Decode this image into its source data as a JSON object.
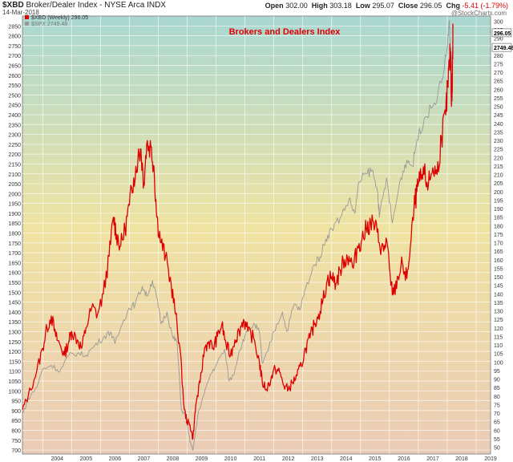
{
  "header": {
    "symbol": "$XBD",
    "description": "Broker/Dealer Index - NYSE Arca INDX",
    "date": "14-Mar-2018",
    "open_label": "Open",
    "open": "302.00",
    "high_label": "High",
    "high": "303.18",
    "low_label": "Low",
    "low": "295.07",
    "close_label": "Close",
    "close": "296.05",
    "chg_label": "Chg",
    "chg": "-5.41 (-1.79%)",
    "watermark": "@StockCharts.com"
  },
  "chart_data": {
    "type": "line",
    "title": "Brokers and Dealers Index",
    "x_tick_labels": [
      "2004",
      "2005",
      "2006",
      "2007",
      "2008",
      "2009",
      "2010",
      "2011",
      "2012",
      "2013",
      "2014",
      "2015",
      "2016",
      "2017",
      "2018",
      "2019"
    ],
    "x_range": [
      2003.3,
      2019.5
    ],
    "left_axis": {
      "range": [
        680,
        2900
      ],
      "ticks": [
        700,
        750,
        800,
        850,
        900,
        950,
        1000,
        1050,
        1100,
        1150,
        1200,
        1250,
        1300,
        1350,
        1400,
        1450,
        1500,
        1550,
        1600,
        1650,
        1700,
        1750,
        1800,
        1850,
        1900,
        1950,
        2000,
        2050,
        2100,
        2150,
        2200,
        2250,
        2300,
        2350,
        2400,
        2450,
        2500,
        2550,
        2600,
        2650,
        2700,
        2750,
        2800,
        2850
      ]
    },
    "right_axis": {
      "range": [
        46,
        303
      ],
      "ticks": [
        50,
        55,
        60,
        65,
        70,
        75,
        80,
        85,
        90,
        95,
        100,
        105,
        110,
        115,
        120,
        125,
        130,
        135,
        140,
        145,
        150,
        155,
        160,
        165,
        170,
        175,
        180,
        185,
        190,
        195,
        200,
        205,
        210,
        215,
        220,
        225,
        230,
        235,
        240,
        245,
        250,
        255,
        260,
        265,
        270,
        275,
        280,
        285,
        290,
        295,
        300
      ]
    },
    "series": [
      {
        "name": "$XBD (Weekly) 296.05",
        "axis": "right",
        "color": "#dd0000",
        "points": [
          [
            2003.3,
            72
          ],
          [
            2003.5,
            80
          ],
          [
            2003.8,
            95
          ],
          [
            2004.0,
            108
          ],
          [
            2004.15,
            120
          ],
          [
            2004.3,
            127
          ],
          [
            2004.45,
            115
          ],
          [
            2004.6,
            110
          ],
          [
            2004.75,
            104
          ],
          [
            2004.9,
            112
          ],
          [
            2005.0,
            118
          ],
          [
            2005.2,
            113
          ],
          [
            2005.35,
            108
          ],
          [
            2005.5,
            120
          ],
          [
            2005.7,
            132
          ],
          [
            2005.9,
            128
          ],
          [
            2006.1,
            140
          ],
          [
            2006.3,
            162
          ],
          [
            2006.45,
            185
          ],
          [
            2006.55,
            175
          ],
          [
            2006.7,
            168
          ],
          [
            2006.85,
            178
          ],
          [
            2007.0,
            192
          ],
          [
            2007.15,
            208
          ],
          [
            2007.3,
            220
          ],
          [
            2007.4,
            225
          ],
          [
            2007.5,
            205
          ],
          [
            2007.6,
            228
          ],
          [
            2007.75,
            226
          ],
          [
            2007.85,
            215
          ],
          [
            2007.95,
            185
          ],
          [
            2008.1,
            170
          ],
          [
            2008.25,
            162
          ],
          [
            2008.45,
            145
          ],
          [
            2008.6,
            128
          ],
          [
            2008.75,
            108
          ],
          [
            2008.9,
            72
          ],
          [
            2009.0,
            65
          ],
          [
            2009.1,
            63
          ],
          [
            2009.2,
            55
          ],
          [
            2009.3,
            75
          ],
          [
            2009.45,
            88
          ],
          [
            2009.6,
            108
          ],
          [
            2009.75,
            112
          ],
          [
            2009.9,
            108
          ],
          [
            2010.05,
            115
          ],
          [
            2010.2,
            122
          ],
          [
            2010.35,
            110
          ],
          [
            2010.5,
            104
          ],
          [
            2010.65,
            113
          ],
          [
            2010.8,
            118
          ],
          [
            2010.95,
            125
          ],
          [
            2011.1,
            118
          ],
          [
            2011.3,
            114
          ],
          [
            2011.5,
            100
          ],
          [
            2011.6,
            88
          ],
          [
            2011.75,
            84
          ],
          [
            2011.9,
            90
          ],
          [
            2012.05,
            96
          ],
          [
            2012.2,
            94
          ],
          [
            2012.35,
            86
          ],
          [
            2012.5,
            84
          ],
          [
            2012.65,
            88
          ],
          [
            2012.8,
            92
          ],
          [
            2012.95,
            98
          ],
          [
            2013.1,
            108
          ],
          [
            2013.25,
            114
          ],
          [
            2013.4,
            122
          ],
          [
            2013.55,
            128
          ],
          [
            2013.7,
            136
          ],
          [
            2013.85,
            148
          ],
          [
            2014.0,
            150
          ],
          [
            2014.15,
            146
          ],
          [
            2014.3,
            154
          ],
          [
            2014.45,
            160
          ],
          [
            2014.6,
            162
          ],
          [
            2014.75,
            155
          ],
          [
            2014.9,
            168
          ],
          [
            2015.05,
            172
          ],
          [
            2015.2,
            178
          ],
          [
            2015.35,
            182
          ],
          [
            2015.5,
            180
          ],
          [
            2015.65,
            170
          ],
          [
            2015.8,
            165
          ],
          [
            2015.9,
            172
          ],
          [
            2016.05,
            145
          ],
          [
            2016.15,
            140
          ],
          [
            2016.3,
            150
          ],
          [
            2016.45,
            158
          ],
          [
            2016.55,
            148
          ],
          [
            2016.7,
            162
          ],
          [
            2016.85,
            190
          ],
          [
            2016.95,
            200
          ],
          [
            2017.05,
            206
          ],
          [
            2017.2,
            210
          ],
          [
            2017.35,
            204
          ],
          [
            2017.5,
            214
          ],
          [
            2017.65,
            210
          ],
          [
            2017.8,
            232
          ],
          [
            2017.95,
            245
          ],
          [
            2018.02,
            262
          ],
          [
            2018.08,
            275
          ],
          [
            2018.12,
            282
          ],
          [
            2018.15,
            250
          ],
          [
            2018.18,
            268
          ],
          [
            2018.2,
            296
          ]
        ]
      },
      {
        "name": "$SPX 2749.48",
        "axis": "left",
        "color": "#999999",
        "points": [
          [
            2003.3,
            880
          ],
          [
            2003.5,
            960
          ],
          [
            2003.8,
            1020
          ],
          [
            2004.0,
            1110
          ],
          [
            2004.3,
            1130
          ],
          [
            2004.6,
            1100
          ],
          [
            2004.9,
            1180
          ],
          [
            2005.2,
            1190
          ],
          [
            2005.5,
            1180
          ],
          [
            2005.8,
            1230
          ],
          [
            2006.1,
            1270
          ],
          [
            2006.35,
            1300
          ],
          [
            2006.5,
            1240
          ],
          [
            2006.8,
            1360
          ],
          [
            2007.0,
            1420
          ],
          [
            2007.2,
            1440
          ],
          [
            2007.45,
            1530
          ],
          [
            2007.6,
            1480
          ],
          [
            2007.8,
            1560
          ],
          [
            2007.95,
            1470
          ],
          [
            2008.1,
            1340
          ],
          [
            2008.3,
            1400
          ],
          [
            2008.5,
            1270
          ],
          [
            2008.65,
            1250
          ],
          [
            2008.8,
            900
          ],
          [
            2008.95,
            880
          ],
          [
            2009.1,
            740
          ],
          [
            2009.2,
            700
          ],
          [
            2009.4,
            900
          ],
          [
            2009.6,
            990
          ],
          [
            2009.8,
            1080
          ],
          [
            2010.0,
            1130
          ],
          [
            2010.3,
            1210
          ],
          [
            2010.45,
            1050
          ],
          [
            2010.6,
            1080
          ],
          [
            2010.8,
            1200
          ],
          [
            2011.0,
            1280
          ],
          [
            2011.3,
            1340
          ],
          [
            2011.5,
            1300
          ],
          [
            2011.6,
            1140
          ],
          [
            2011.8,
            1200
          ],
          [
            2012.0,
            1300
          ],
          [
            2012.3,
            1400
          ],
          [
            2012.45,
            1300
          ],
          [
            2012.7,
            1440
          ],
          [
            2012.9,
            1410
          ],
          [
            2013.1,
            1520
          ],
          [
            2013.4,
            1640
          ],
          [
            2013.6,
            1680
          ],
          [
            2013.8,
            1770
          ],
          [
            2014.0,
            1820
          ],
          [
            2014.3,
            1880
          ],
          [
            2014.6,
            1970
          ],
          [
            2014.8,
            1900
          ],
          [
            2014.95,
            2060
          ],
          [
            2015.2,
            2100
          ],
          [
            2015.4,
            2120
          ],
          [
            2015.6,
            2000
          ],
          [
            2015.65,
            1880
          ],
          [
            2015.9,
            2080
          ],
          [
            2016.1,
            1850
          ],
          [
            2016.4,
            2080
          ],
          [
            2016.6,
            2170
          ],
          [
            2016.8,
            2140
          ],
          [
            2016.95,
            2270
          ],
          [
            2017.2,
            2380
          ],
          [
            2017.5,
            2440
          ],
          [
            2017.8,
            2560
          ],
          [
            2018.0,
            2740
          ],
          [
            2018.08,
            2870
          ],
          [
            2018.13,
            2600
          ],
          [
            2018.2,
            2749
          ]
        ]
      }
    ],
    "last_labels": {
      "right": "296.05",
      "left": "2749.48"
    },
    "colors": {
      "bg_top": "#aad8d2",
      "bg_mid": "#efe3a2",
      "bg_bottom": "#ebccb6",
      "grid": "#ffffff",
      "xbd": "#dd0000",
      "spx": "#999999"
    }
  }
}
